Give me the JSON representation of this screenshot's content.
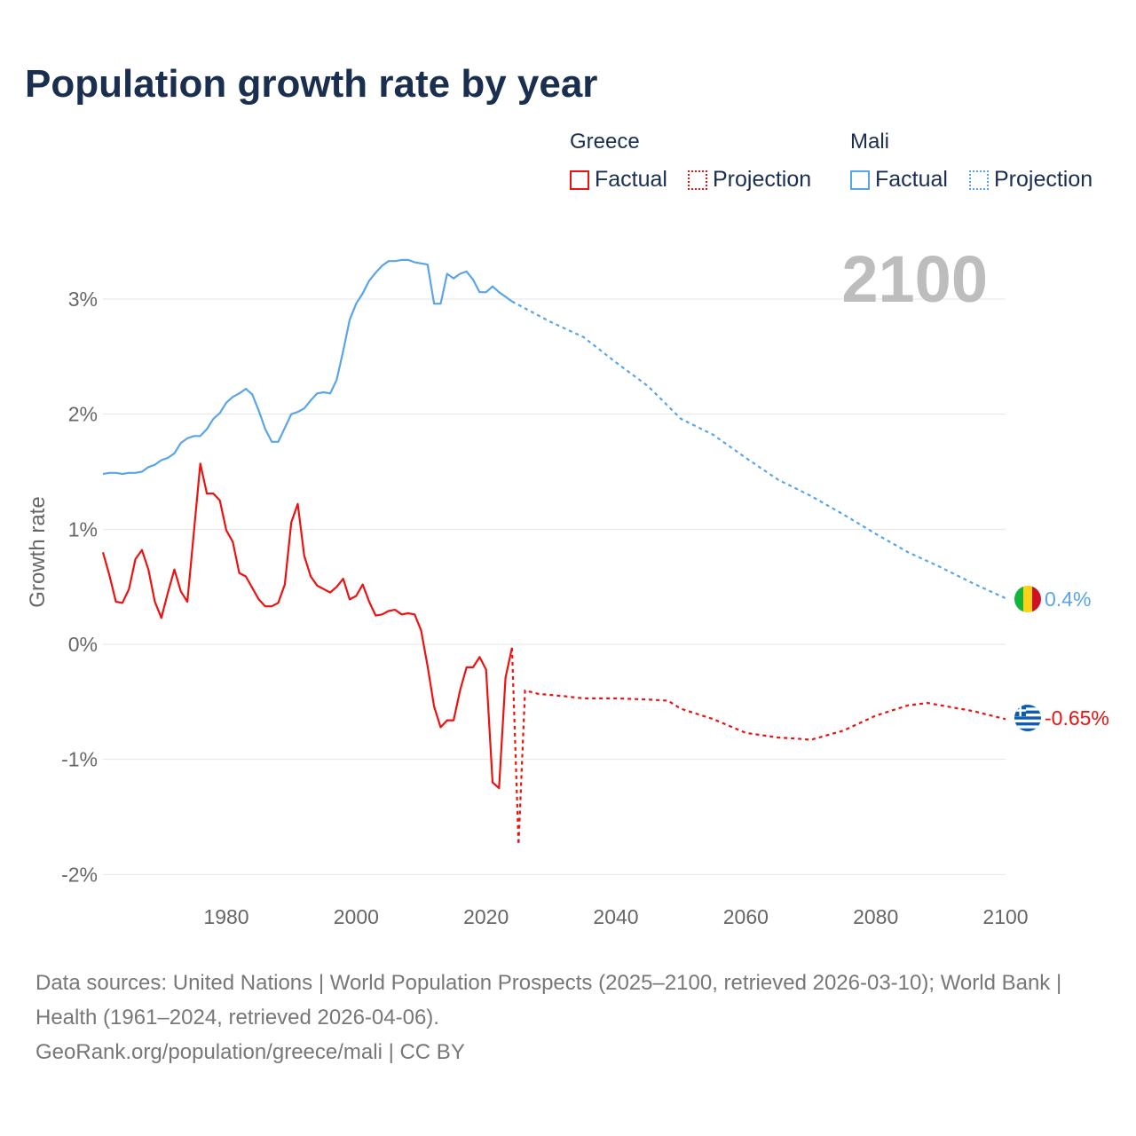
{
  "title": "Population growth rate by year",
  "legend": {
    "groups": [
      {
        "name": "Greece",
        "factual": "Factual",
        "projection": "Projection",
        "color": "#ee1111"
      },
      {
        "name": "Mali",
        "factual": "Factual",
        "projection": "Projection",
        "color": "#5aa5ea"
      }
    ]
  },
  "current_year": "2100",
  "end_labels": {
    "mali": "0.4%",
    "greece": "-0.65%"
  },
  "footer": {
    "sources": "Data sources: United Nations | World Population Prospects (2025–2100, retrieved 2026-03-10); World Bank | Health (1961–2024, retrieved 2026-04-06).",
    "link": "GeoRank.org/population/greece/mali | CC BY"
  },
  "chart_data": {
    "type": "line",
    "title": "Population growth rate by year",
    "xlabel": "",
    "ylabel": "Growth rate",
    "xlim": [
      1961,
      2100
    ],
    "ylim": [
      -2.1,
      3.7
    ],
    "x_ticks": [
      1980,
      2000,
      2020,
      2040,
      2060,
      2080,
      2100
    ],
    "y_ticks": [
      {
        "v": 3,
        "label": "3%"
      },
      {
        "v": 2,
        "label": "2%"
      },
      {
        "v": 1,
        "label": "1%"
      },
      {
        "v": 0,
        "label": "0%"
      },
      {
        "v": -1,
        "label": "-1%"
      },
      {
        "v": -2,
        "label": "-2%"
      }
    ],
    "grid": true,
    "legend_position": "top-right",
    "series": [
      {
        "name": "Greece Factual",
        "color": "#ee1111",
        "style": "solid",
        "x": [
          1961,
          1962,
          1963,
          1964,
          1965,
          1966,
          1967,
          1968,
          1969,
          1970,
          1971,
          1972,
          1973,
          1974,
          1975,
          1976,
          1977,
          1978,
          1979,
          1980,
          1981,
          1982,
          1983,
          1984,
          1985,
          1986,
          1987,
          1988,
          1989,
          1990,
          1991,
          1992,
          1993,
          1994,
          1995,
          1996,
          1997,
          1998,
          1999,
          2000,
          2001,
          2002,
          2003,
          2004,
          2005,
          2006,
          2007,
          2008,
          2009,
          2010,
          2011,
          2012,
          2013,
          2014,
          2015,
          2016,
          2017,
          2018,
          2019,
          2020,
          2021,
          2022,
          2023,
          2024
        ],
        "y": [
          0.8,
          0.6,
          0.37,
          0.36,
          0.48,
          0.74,
          0.82,
          0.65,
          0.37,
          0.23,
          0.45,
          0.65,
          0.46,
          0.37,
          0.97,
          1.57,
          1.31,
          1.31,
          1.25,
          0.99,
          0.89,
          0.62,
          0.59,
          0.49,
          0.39,
          0.33,
          0.33,
          0.36,
          0.52,
          1.06,
          1.22,
          0.77,
          0.59,
          0.51,
          0.48,
          0.45,
          0.5,
          0.57,
          0.39,
          0.42,
          0.52,
          0.37,
          0.25,
          0.26,
          0.29,
          0.3,
          0.26,
          0.27,
          0.26,
          0.12,
          -0.19,
          -0.54,
          -0.72,
          -0.66,
          -0.66,
          -0.4,
          -0.2,
          -0.2,
          -0.11,
          -0.22,
          -1.2,
          -1.25,
          -0.29,
          -0.03
        ]
      },
      {
        "name": "Greece Projection",
        "color": "#ee1111",
        "style": "dotted",
        "x": [
          2024,
          2025,
          2026,
          2028,
          2030,
          2032,
          2035,
          2040,
          2045,
          2048,
          2050,
          2055,
          2060,
          2065,
          2068,
          2070,
          2075,
          2080,
          2085,
          2088,
          2090,
          2095,
          2100
        ],
        "y": [
          -0.03,
          -1.74,
          -0.4,
          -0.43,
          -0.44,
          -0.45,
          -0.47,
          -0.47,
          -0.48,
          -0.49,
          -0.56,
          -0.65,
          -0.77,
          -0.81,
          -0.82,
          -0.83,
          -0.75,
          -0.62,
          -0.53,
          -0.51,
          -0.53,
          -0.58,
          -0.65
        ]
      },
      {
        "name": "Mali Factual",
        "color": "#5aa5ea",
        "style": "solid",
        "x": [
          1961,
          1962,
          1963,
          1964,
          1965,
          1966,
          1967,
          1968,
          1969,
          1970,
          1971,
          1972,
          1973,
          1974,
          1975,
          1976,
          1977,
          1978,
          1979,
          1980,
          1981,
          1982,
          1983,
          1984,
          1985,
          1986,
          1987,
          1988,
          1989,
          1990,
          1991,
          1992,
          1993,
          1994,
          1995,
          1996,
          1997,
          1998,
          1999,
          2000,
          2001,
          2002,
          2003,
          2004,
          2005,
          2006,
          2007,
          2008,
          2009,
          2010,
          2011,
          2012,
          2013,
          2014,
          2015,
          2016,
          2017,
          2018,
          2019,
          2020,
          2021,
          2022,
          2023,
          2024
        ],
        "y": [
          1.48,
          1.49,
          1.49,
          1.48,
          1.49,
          1.49,
          1.5,
          1.54,
          1.56,
          1.6,
          1.62,
          1.66,
          1.75,
          1.79,
          1.81,
          1.81,
          1.87,
          1.96,
          2.01,
          2.1,
          2.15,
          2.18,
          2.22,
          2.17,
          2.03,
          1.87,
          1.76,
          1.76,
          1.88,
          2.0,
          2.02,
          2.05,
          2.12,
          2.18,
          2.19,
          2.18,
          2.3,
          2.55,
          2.82,
          2.96,
          3.05,
          3.16,
          3.23,
          3.29,
          3.33,
          3.33,
          3.34,
          3.34,
          3.32,
          3.31,
          3.3,
          2.96,
          2.96,
          3.22,
          3.18,
          3.22,
          3.24,
          3.17,
          3.06,
          3.06,
          3.11,
          3.06,
          3.02,
          2.98
        ]
      },
      {
        "name": "Mali Projection",
        "color": "#5aa5ea",
        "style": "dotted",
        "x": [
          2024,
          2030,
          2035,
          2040,
          2045,
          2050,
          2055,
          2060,
          2065,
          2070,
          2075,
          2080,
          2085,
          2090,
          2095,
          2100
        ],
        "y": [
          2.98,
          2.8,
          2.67,
          2.45,
          2.24,
          1.96,
          1.82,
          1.62,
          1.43,
          1.29,
          1.13,
          0.96,
          0.8,
          0.67,
          0.53,
          0.4
        ]
      }
    ]
  }
}
